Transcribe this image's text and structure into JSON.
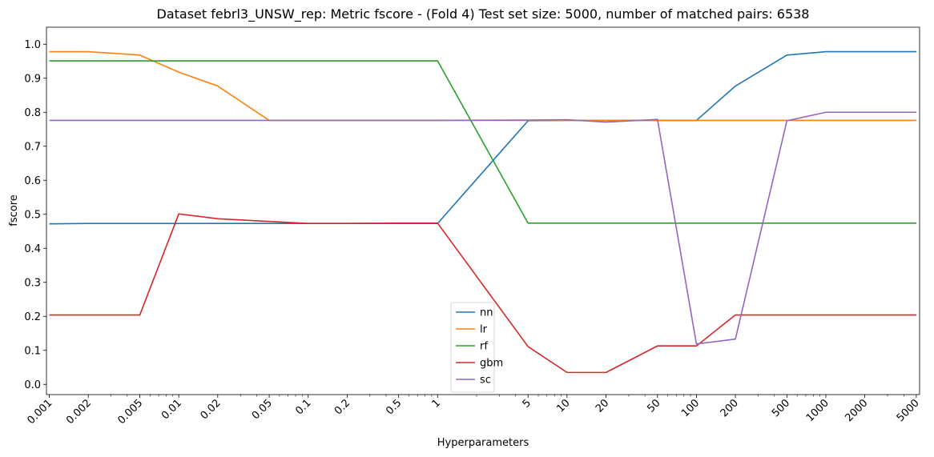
{
  "chart_data": {
    "type": "line",
    "title": "Dataset febrl3_UNSW_rep: Metric fscore - (Fold 4) Test set size: 5000, number of matched pairs: 6538",
    "xlabel": "Hyperparameters",
    "ylabel": "fscore",
    "xscale": "log",
    "xlim": [
      0.00095,
      5300
    ],
    "ylim": [
      -0.03,
      1.05
    ],
    "x": [
      0.001,
      0.002,
      0.005,
      0.01,
      0.02,
      0.05,
      0.1,
      0.2,
      0.5,
      1,
      5,
      10,
      20,
      50,
      100,
      200,
      500,
      1000,
      2000,
      5000
    ],
    "x_tick_labels": [
      "0.001",
      "0.002",
      "0.005",
      "0.01",
      "0.02",
      "0.05",
      "0.1",
      "0.2",
      "0.5",
      "1",
      "5",
      "10",
      "20",
      "50",
      "100",
      "200",
      "500",
      "1000",
      "2000",
      "5000"
    ],
    "y_ticks": [
      0.0,
      0.1,
      0.2,
      0.3,
      0.4,
      0.5,
      0.6,
      0.7,
      0.8,
      0.9,
      1.0
    ],
    "y_tick_labels": [
      "0.0",
      "0.1",
      "0.2",
      "0.3",
      "0.4",
      "0.5",
      "0.6",
      "0.7",
      "0.8",
      "0.9",
      "1.0"
    ],
    "grid": false,
    "legend_position": "bottom-center",
    "series": [
      {
        "name": "nn",
        "color": "#1f77b4",
        "values": [
          0.472,
          0.473,
          0.473,
          0.473,
          0.473,
          0.473,
          0.473,
          0.473,
          0.473,
          0.473,
          0.775,
          0.776,
          0.776,
          0.776,
          0.776,
          0.877,
          0.968,
          0.978,
          0.978,
          0.978
        ]
      },
      {
        "name": "lr",
        "color": "#ff7f0e",
        "values": [
          0.978,
          0.978,
          0.968,
          0.918,
          0.877,
          0.776,
          0.776,
          0.776,
          0.776,
          0.776,
          0.776,
          0.776,
          0.776,
          0.776,
          0.776,
          0.776,
          0.776,
          0.776,
          0.776,
          0.776
        ]
      },
      {
        "name": "rf",
        "color": "#2ca02c",
        "values": [
          0.951,
          0.951,
          0.951,
          0.951,
          0.951,
          0.951,
          0.951,
          0.951,
          0.951,
          0.951,
          0.474,
          0.474,
          0.474,
          0.474,
          0.474,
          0.474,
          0.474,
          0.474,
          0.474,
          0.474
        ]
      },
      {
        "name": "gbm",
        "color": "#d62728",
        "values": [
          0.204,
          0.204,
          0.204,
          0.501,
          0.487,
          0.479,
          0.473,
          0.473,
          0.474,
          0.474,
          0.111,
          0.035,
          0.035,
          0.113,
          0.113,
          0.204,
          0.204,
          0.204,
          0.204,
          0.204
        ]
      },
      {
        "name": "sc",
        "color": "#9467bd",
        "values": [
          0.776,
          0.776,
          0.776,
          0.776,
          0.776,
          0.776,
          0.776,
          0.776,
          0.776,
          0.776,
          0.777,
          0.778,
          0.771,
          0.779,
          0.119,
          0.133,
          0.775,
          0.8,
          0.8,
          0.8
        ]
      }
    ]
  }
}
